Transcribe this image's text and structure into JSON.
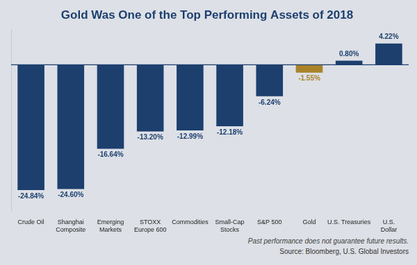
{
  "chart_data": {
    "type": "bar",
    "title": "Gold Was One of the Top Performing Assets of 2018",
    "categories": [
      "Crude Oil",
      "Shanghai\nComposite",
      "Emerging\nMarkets",
      "STOXX\nEurope 600",
      "Commodities",
      "Small-Cap\nStocks",
      "S&P 500",
      "Gold",
      "U.S. Treasuries",
      "U.S.\nDollar"
    ],
    "values": [
      -24.84,
      -24.6,
      -16.64,
      -13.2,
      -12.99,
      -12.18,
      -6.24,
      -1.55,
      0.8,
      4.22
    ],
    "value_labels": [
      "-24.84%",
      "-24.60%",
      "-16.64%",
      "-13.20%",
      "-12.99%",
      "-12.18%",
      "-6.24%",
      "-1.55%",
      "0.80%",
      "4.22%"
    ],
    "colors": [
      "#1c3f6e",
      "#1c3f6e",
      "#1c3f6e",
      "#1c3f6e",
      "#1c3f6e",
      "#1c3f6e",
      "#1c3f6e",
      "#a8832a",
      "#1c3f6e",
      "#1c3f6e"
    ],
    "ylim": [
      -29,
      7
    ],
    "grid": false,
    "data_labels": true,
    "tick_labels": "x",
    "annotations": [
      "Past performance does not guarantee future results.",
      "Source: Bloomberg, U.S. Global Investors"
    ]
  }
}
